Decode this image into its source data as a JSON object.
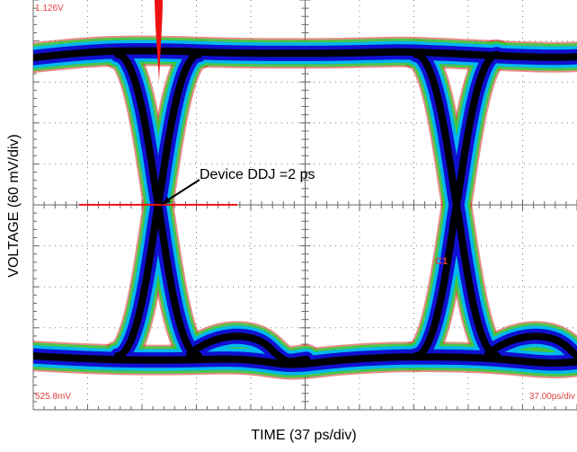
{
  "chart_data": {
    "type": "eye-diagram",
    "title": "",
    "xlabel": "TIME (37 ps/div)",
    "ylabel": "VOLTAGE (60 mV/div)",
    "ylim": [
      525.8,
      1126
    ],
    "y_units": "mV",
    "x_scale_ps_per_div": 37,
    "y_scale_mV_per_div": 60,
    "divisions": {
      "x": 10,
      "y": 10
    },
    "grid": true,
    "readouts": {
      "top_left": "1.126V",
      "bottom_left": "525.8mV",
      "bottom_right": "37.00ps/div",
      "marker": "C1"
    },
    "annotation": {
      "text": "Device DDJ =2 ps",
      "points_to": "eye crossing"
    },
    "series": [
      {
        "name": "",
        "levels_mV": [
          1046,
          605
        ]
      }
    ],
    "crossing_level_mV": 826,
    "colors": {
      "trace_core": "#000000",
      "trace_mid": "#1010d0",
      "trace_outer": "#00b8f0",
      "trace_edge": "#30d040",
      "trace_fringe": "#d43020",
      "histogram": "#ee1111",
      "readout_text": "#e04040",
      "grid": "#7a7a7a"
    }
  }
}
